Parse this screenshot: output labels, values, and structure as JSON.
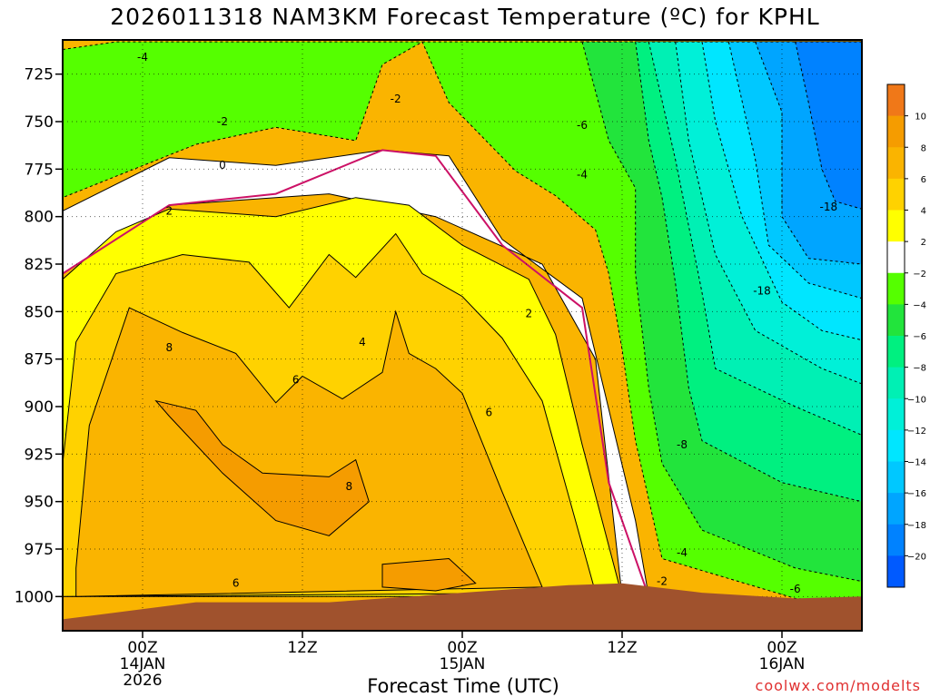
{
  "chart_data": {
    "type": "heatmap",
    "title": "2026011318 NAM3KM Forecast Temperature (ºC) for KPHL",
    "xlabel": "Forecast Time (UTC)",
    "ylabel": "",
    "credit": "coolwx.com/modelts",
    "x_ticks": [
      {
        "label": "00Z",
        "sub": [
          "14JAN",
          "2026"
        ],
        "hour": 6
      },
      {
        "label": "12Z",
        "sub": [],
        "hour": 18
      },
      {
        "label": "00Z",
        "sub": [
          "15JAN"
        ],
        "hour": 30
      },
      {
        "label": "12Z",
        "sub": [],
        "hour": 42
      },
      {
        "label": "00Z",
        "sub": [
          "16JAN"
        ],
        "hour": 54
      }
    ],
    "xlim_hours": [
      0,
      60
    ],
    "ylim_hpa": [
      1018,
      707
    ],
    "y_ticks": [
      725,
      750,
      775,
      800,
      825,
      850,
      875,
      900,
      925,
      950,
      975,
      1000
    ],
    "colorbar": {
      "ticks": [
        10,
        8,
        6,
        4,
        2,
        -2,
        -4,
        -6,
        -8,
        -10,
        -12,
        -14,
        -16,
        -18,
        -20
      ],
      "bins": [
        {
          "lo": 10,
          "hi": 12,
          "color": "#f07818"
        },
        {
          "lo": 8,
          "hi": 10,
          "color": "#f59c00"
        },
        {
          "lo": 6,
          "hi": 8,
          "color": "#fab400"
        },
        {
          "lo": 4,
          "hi": 6,
          "color": "#ffd200"
        },
        {
          "lo": 2,
          "hi": 4,
          "color": "#ffff00"
        },
        {
          "lo": -2,
          "hi": 2,
          "color": "#ffffff"
        },
        {
          "lo": -4,
          "hi": -2,
          "color": "#55ff00"
        },
        {
          "lo": -6,
          "hi": -4,
          "color": "#22e43c"
        },
        {
          "lo": -8,
          "hi": -6,
          "color": "#00f080"
        },
        {
          "lo": -10,
          "hi": -8,
          "color": "#00f0b4"
        },
        {
          "lo": -12,
          "hi": -10,
          "color": "#00f0d8"
        },
        {
          "lo": -14,
          "hi": -12,
          "color": "#00e6ff"
        },
        {
          "lo": -16,
          "hi": -14,
          "color": "#00c8ff"
        },
        {
          "lo": -18,
          "hi": -16,
          "color": "#00a5ff"
        },
        {
          "lo": -20,
          "hi": -18,
          "color": "#0082ff"
        },
        {
          "lo": -22,
          "hi": -20,
          "color": "#005aff"
        }
      ]
    },
    "ground_color": "#a0522d",
    "freezing_line_color": "#cc1166",
    "regions": [
      {
        "temp": 1,
        "color": "#ffffff",
        "points": [
          [
            0,
            797
          ],
          [
            8,
            769
          ],
          [
            16,
            773
          ],
          [
            24,
            765
          ],
          [
            29,
            768
          ],
          [
            33,
            812
          ],
          [
            39,
            843
          ],
          [
            43,
            960
          ],
          [
            44,
            1000
          ],
          [
            42,
            1000
          ],
          [
            40,
            875
          ],
          [
            36,
            825
          ],
          [
            28,
            800
          ],
          [
            20,
            788
          ],
          [
            8,
            794
          ],
          [
            0,
            830
          ]
        ]
      },
      {
        "temp": 3,
        "color": "#ffff00",
        "points": [
          [
            0,
            833
          ],
          [
            4,
            808
          ],
          [
            8,
            796
          ],
          [
            16,
            800
          ],
          [
            22,
            790
          ],
          [
            26,
            794
          ],
          [
            30,
            815
          ],
          [
            35,
            833
          ],
          [
            37,
            862
          ],
          [
            39,
            920
          ],
          [
            42,
            1000
          ],
          [
            0,
            1000
          ]
        ]
      },
      {
        "temp": 5,
        "color": "#ffd200",
        "points": [
          [
            0,
            930
          ],
          [
            1,
            866
          ],
          [
            4,
            830
          ],
          [
            9,
            820
          ],
          [
            14,
            824
          ],
          [
            17,
            848
          ],
          [
            20,
            820
          ],
          [
            22,
            832
          ],
          [
            25,
            809
          ],
          [
            27,
            830
          ],
          [
            30,
            842
          ],
          [
            33,
            864
          ],
          [
            36,
            897
          ],
          [
            40,
            998
          ],
          [
            0,
            1000
          ]
        ]
      },
      {
        "temp": 7,
        "color": "#fab400",
        "points": [
          [
            1,
            985
          ],
          [
            2,
            910
          ],
          [
            5,
            848
          ],
          [
            9,
            861
          ],
          [
            13,
            872
          ],
          [
            16,
            898
          ],
          [
            18,
            884
          ],
          [
            21,
            896
          ],
          [
            24,
            882
          ],
          [
            25,
            850
          ],
          [
            26,
            872
          ],
          [
            28,
            880
          ],
          [
            30,
            893
          ],
          [
            33,
            945
          ],
          [
            36,
            995
          ],
          [
            1,
            1000
          ]
        ]
      },
      {
        "temp": 9,
        "color": "#f59c00",
        "points": [
          [
            7,
            897
          ],
          [
            10,
            902
          ],
          [
            12,
            920
          ],
          [
            15,
            935
          ],
          [
            20,
            937
          ],
          [
            22,
            928
          ],
          [
            23,
            950
          ],
          [
            20,
            968
          ],
          [
            16,
            960
          ],
          [
            12,
            935
          ],
          [
            8,
            905
          ]
        ]
      },
      {
        "temp": 9,
        "color": "#f59c00",
        "points": [
          [
            24,
            983
          ],
          [
            29,
            980
          ],
          [
            31,
            993
          ],
          [
            28,
            997
          ],
          [
            24,
            995
          ]
        ]
      },
      {
        "temp": -3,
        "color": "#55ff00",
        "points": [
          [
            0,
            712
          ],
          [
            4,
            708
          ],
          [
            27,
            708
          ],
          [
            29,
            740
          ],
          [
            34,
            776
          ],
          [
            37,
            789
          ],
          [
            40,
            807
          ],
          [
            41,
            830
          ],
          [
            42,
            870
          ],
          [
            43,
            918
          ],
          [
            45,
            980
          ],
          [
            55,
            1001
          ],
          [
            60,
            1004
          ],
          [
            60,
            708
          ],
          [
            27,
            708
          ],
          [
            24,
            720
          ],
          [
            22,
            760
          ],
          [
            16,
            753
          ],
          [
            10,
            762
          ],
          [
            0,
            790
          ]
        ]
      },
      {
        "temp": -5,
        "color": "#22e43c",
        "points": [
          [
            39,
            708
          ],
          [
            41,
            760
          ],
          [
            43,
            785
          ],
          [
            43,
            830
          ],
          [
            44,
            890
          ],
          [
            45,
            930
          ],
          [
            48,
            965
          ],
          [
            55,
            985
          ],
          [
            60,
            992
          ],
          [
            60,
            708
          ]
        ]
      },
      {
        "temp": -7,
        "color": "#00f080",
        "points": [
          [
            43,
            708
          ],
          [
            44,
            760
          ],
          [
            45,
            790
          ],
          [
            46,
            835
          ],
          [
            47,
            890
          ],
          [
            48,
            918
          ],
          [
            54,
            940
          ],
          [
            60,
            950
          ],
          [
            60,
            708
          ]
        ]
      },
      {
        "temp": -9,
        "color": "#00f0b4",
        "points": [
          [
            44,
            708
          ],
          [
            46,
            770
          ],
          [
            48,
            840
          ],
          [
            49,
            880
          ],
          [
            55,
            900
          ],
          [
            60,
            915
          ],
          [
            60,
            708
          ]
        ]
      },
      {
        "temp": -11,
        "color": "#00f0d8",
        "points": [
          [
            46,
            708
          ],
          [
            47,
            760
          ],
          [
            49,
            820
          ],
          [
            52,
            860
          ],
          [
            57,
            880
          ],
          [
            60,
            888
          ],
          [
            60,
            708
          ]
        ]
      },
      {
        "temp": -13,
        "color": "#00e6ff",
        "points": [
          [
            48,
            708
          ],
          [
            49,
            750
          ],
          [
            51,
            800
          ],
          [
            54,
            845
          ],
          [
            57,
            860
          ],
          [
            60,
            865
          ],
          [
            60,
            708
          ]
        ]
      },
      {
        "temp": -15,
        "color": "#00c8ff",
        "points": [
          [
            50,
            708
          ],
          [
            52,
            770
          ],
          [
            53,
            815
          ],
          [
            56,
            835
          ],
          [
            60,
            843
          ],
          [
            60,
            708
          ]
        ]
      },
      {
        "temp": -17,
        "color": "#00a5ff",
        "points": [
          [
            52,
            708
          ],
          [
            54,
            745
          ],
          [
            54,
            800
          ],
          [
            56,
            822
          ],
          [
            60,
            825
          ],
          [
            60,
            708
          ]
        ]
      },
      {
        "temp": -19,
        "color": "#0082ff",
        "points": [
          [
            55,
            708
          ],
          [
            56,
            740
          ],
          [
            57,
            775
          ],
          [
            58,
            792
          ],
          [
            60,
            796
          ],
          [
            60,
            708
          ]
        ]
      }
    ],
    "ground": [
      [
        0,
        1012
      ],
      [
        10,
        1003
      ],
      [
        20,
        1003
      ],
      [
        30,
        998
      ],
      [
        38,
        994
      ],
      [
        42,
        993
      ],
      [
        48,
        998
      ],
      [
        55,
        1001
      ],
      [
        60,
        1000
      ]
    ],
    "freezing_line": [
      [
        0,
        830
      ],
      [
        8,
        794
      ],
      [
        16,
        788
      ],
      [
        24,
        765
      ],
      [
        28,
        768
      ],
      [
        33,
        815
      ],
      [
        39,
        848
      ],
      [
        41,
        940
      ],
      [
        44,
        1000
      ]
    ],
    "contour_labels": [
      {
        "text": "-4",
        "hour": 6,
        "p": 716
      },
      {
        "text": "-2",
        "hour": 12,
        "p": 750
      },
      {
        "text": "0",
        "hour": 12,
        "p": 773
      },
      {
        "text": "2",
        "hour": 8,
        "p": 797
      },
      {
        "text": "-2",
        "hour": 25,
        "p": 738
      },
      {
        "text": "-6",
        "hour": 39,
        "p": 752
      },
      {
        "text": "-4",
        "hour": 39,
        "p": 778
      },
      {
        "text": "2",
        "hour": 35,
        "p": 851
      },
      {
        "text": "4",
        "hour": 22.5,
        "p": 866
      },
      {
        "text": "6",
        "hour": 17.5,
        "p": 886
      },
      {
        "text": "8",
        "hour": 8,
        "p": 869
      },
      {
        "text": "6",
        "hour": 32,
        "p": 903
      },
      {
        "text": "8",
        "hour": 21.5,
        "p": 942
      },
      {
        "text": "6",
        "hour": 13,
        "p": 993
      },
      {
        "text": "-18",
        "hour": 57.5,
        "p": 795
      },
      {
        "text": "-18",
        "hour": 52.5,
        "p": 839
      },
      {
        "text": "-8",
        "hour": 46.5,
        "p": 920
      },
      {
        "text": "-4",
        "hour": 46.5,
        "p": 977
      },
      {
        "text": "-2",
        "hour": 45,
        "p": 992
      },
      {
        "text": "-6",
        "hour": 55,
        "p": 996
      }
    ]
  }
}
